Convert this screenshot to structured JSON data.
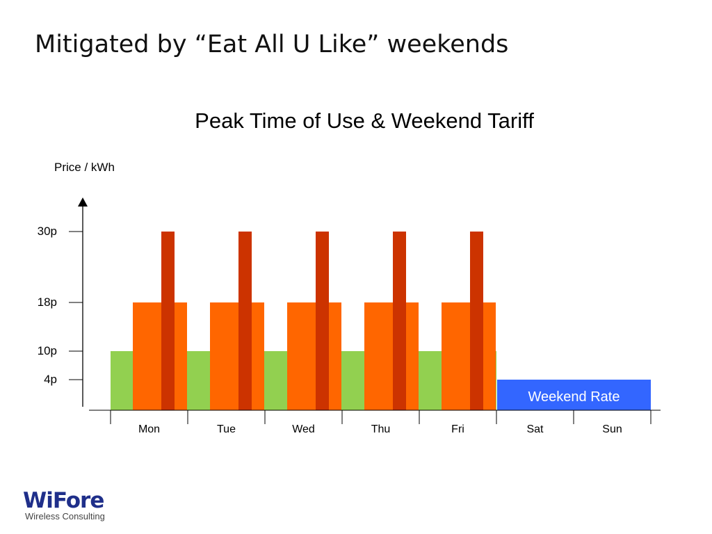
{
  "slide": {
    "title": "Mitigated by “Eat All U Like” weekends"
  },
  "chart_data": {
    "type": "bar",
    "title": "Peak Time of Use & Weekend Tariff",
    "ylabel": "Price / kWh",
    "xlabel": "",
    "ylim": [
      0,
      38
    ],
    "y_ticks": [
      {
        "value": 4,
        "label": "4p"
      },
      {
        "value": 10,
        "label": "10p"
      },
      {
        "value": 18,
        "label": "18p"
      },
      {
        "value": 30,
        "label": "30p"
      }
    ],
    "categories": [
      "Mon",
      "Tue",
      "Wed",
      "Thu",
      "Fri",
      "Sat",
      "Sun"
    ],
    "series": [
      {
        "values": [
          10,
          10,
          10,
          10,
          10,
          null,
          null
        ],
        "color": "#92d050"
      },
      {
        "values": [
          18,
          18,
          18,
          18,
          18,
          null,
          null
        ],
        "color": "#ff6600"
      },
      {
        "values": [
          30,
          30,
          30,
          30,
          30,
          null,
          null
        ],
        "color": "#cc3300"
      },
      {
        "name": "Weekend Rate",
        "values": [
          null,
          null,
          null,
          null,
          null,
          4,
          4
        ],
        "color": "#3366ff"
      }
    ],
    "annotations": [
      {
        "text": "Weekend Rate",
        "category": "Sat"
      }
    ],
    "grid": false,
    "legend": "none"
  },
  "logo": {
    "name": "WiFore",
    "tagline": "Wireless Consulting"
  }
}
